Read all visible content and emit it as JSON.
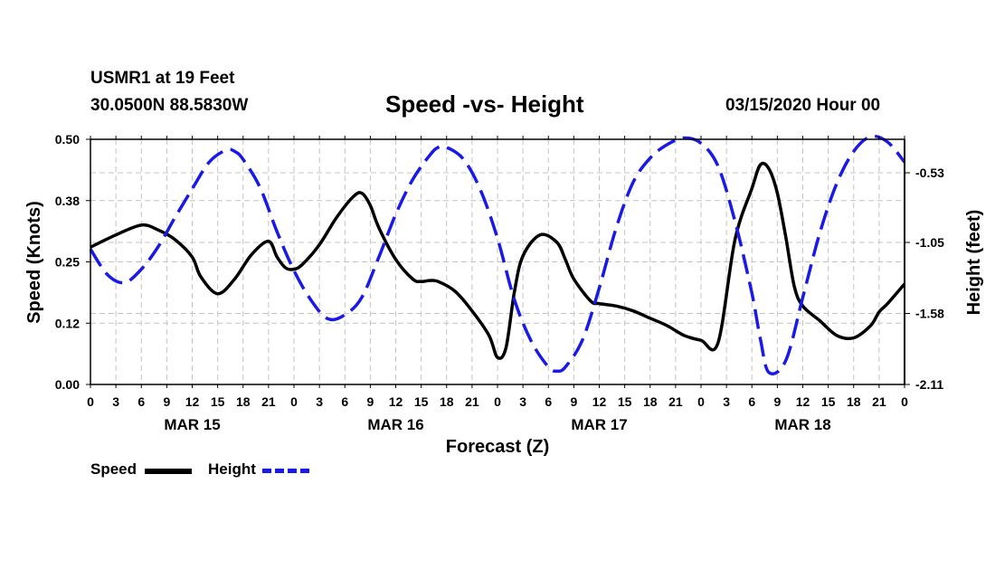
{
  "header": {
    "station": "USMR1 at 19 Feet",
    "coords": "30.0500N 88.5830W",
    "title": "Speed -vs- Height",
    "run": "03/15/2020 Hour 00"
  },
  "legend": {
    "speed": "Speed",
    "height": "Height"
  },
  "chart_data": {
    "type": "line",
    "title": "Speed -vs- Height",
    "xlabel": "Forecast (Z)",
    "ylabel_left": "Speed (Knots)",
    "ylabel_right": "Height (feet)",
    "x_range": [
      0,
      96
    ],
    "ylim_left": [
      0,
      0.5
    ],
    "ylim_right": [
      -2.11,
      -0.28
    ],
    "grid": true,
    "legend_position": "bottom-left",
    "left_ticks": [
      "0.00",
      "0.12",
      "0.25",
      "0.38",
      "0.50"
    ],
    "left_tick_values": [
      0,
      0.125,
      0.25,
      0.375,
      0.5
    ],
    "right_ticks": [
      "-2.11",
      "-1.58",
      "-1.05",
      "-0.53"
    ],
    "right_tick_values": [
      -2.11,
      -1.58,
      -1.05,
      -0.53
    ],
    "x_tick_labels": [
      "0",
      "3",
      "6",
      "9",
      "12",
      "15",
      "18",
      "21",
      "0",
      "3",
      "6",
      "9",
      "12",
      "15",
      "18",
      "21",
      "0",
      "3",
      "6",
      "9",
      "12",
      "15",
      "18",
      "21",
      "0",
      "3",
      "6",
      "9",
      "12",
      "15",
      "18",
      "21",
      "0"
    ],
    "day_labels": [
      {
        "label": "MAR 15",
        "hour": 12
      },
      {
        "label": "MAR 16",
        "hour": 36
      },
      {
        "label": "MAR 17",
        "hour": 60
      },
      {
        "label": "MAR 18",
        "hour": 84
      }
    ],
    "series": [
      {
        "name": "Speed",
        "axis": "left",
        "color": "#000000",
        "style": "solid",
        "x": [
          0,
          3,
          6,
          8,
          10,
          12,
          13,
          15,
          17,
          19,
          21,
          22,
          23,
          24,
          25,
          27,
          29,
          31,
          32,
          33,
          34,
          36,
          38,
          39,
          40,
          41,
          43,
          45,
          47,
          48,
          49,
          50,
          51,
          53,
          55,
          56,
          57,
          59,
          60,
          62,
          64,
          66,
          68,
          70,
          72,
          74,
          76,
          78,
          79,
          80,
          81,
          82,
          83,
          84,
          86,
          88,
          90,
          92,
          93,
          94,
          96
        ],
        "values": [
          0.28,
          0.305,
          0.325,
          0.315,
          0.295,
          0.26,
          0.22,
          0.185,
          0.215,
          0.265,
          0.292,
          0.26,
          0.238,
          0.235,
          0.245,
          0.285,
          0.34,
          0.383,
          0.39,
          0.365,
          0.32,
          0.255,
          0.215,
          0.21,
          0.212,
          0.21,
          0.19,
          0.15,
          0.1,
          0.055,
          0.075,
          0.19,
          0.262,
          0.305,
          0.29,
          0.255,
          0.215,
          0.17,
          0.165,
          0.16,
          0.15,
          0.135,
          0.12,
          0.1,
          0.09,
          0.085,
          0.295,
          0.4,
          0.448,
          0.44,
          0.39,
          0.3,
          0.2,
          0.16,
          0.13,
          0.1,
          0.095,
          0.12,
          0.148,
          0.165,
          0.205
        ]
      },
      {
        "name": "Height",
        "axis": "right",
        "color": "#1a1ae6",
        "style": "dashed",
        "x": [
          0,
          2,
          4,
          6,
          8,
          10,
          12,
          14,
          16,
          17,
          18,
          20,
          22,
          24,
          26,
          28,
          30,
          32,
          34,
          36,
          38,
          40,
          41,
          42,
          44,
          46,
          48,
          50,
          52,
          54,
          55,
          56,
          58,
          60,
          62,
          64,
          66,
          68,
          70,
          72,
          74,
          76,
          78,
          79,
          80,
          82,
          84,
          86,
          88,
          90,
          92,
          94,
          96
        ],
        "values": [
          -1.1,
          -1.29,
          -1.35,
          -1.25,
          -1.08,
          -0.86,
          -0.65,
          -0.45,
          -0.36,
          -0.37,
          -0.43,
          -0.64,
          -0.97,
          -1.26,
          -1.48,
          -1.62,
          -1.59,
          -1.46,
          -1.16,
          -0.84,
          -0.58,
          -0.4,
          -0.34,
          -0.34,
          -0.43,
          -0.66,
          -1.02,
          -1.48,
          -1.79,
          -1.98,
          -2.01,
          -1.98,
          -1.78,
          -1.39,
          -0.94,
          -0.6,
          -0.42,
          -0.32,
          -0.27,
          -0.31,
          -0.48,
          -0.89,
          -1.43,
          -1.77,
          -2.02,
          -1.93,
          -1.46,
          -0.98,
          -0.61,
          -0.37,
          -0.26,
          -0.3,
          -0.45
        ]
      }
    ]
  }
}
